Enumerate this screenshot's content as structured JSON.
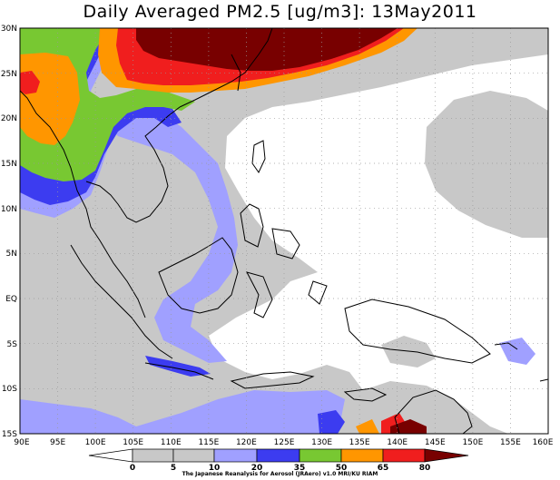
{
  "title": "Daily Averaged PM2.5 [ug/m3]: 13May2011",
  "lat_labels": [
    "30N",
    "25N",
    "20N",
    "15N",
    "10N",
    "5N",
    "EQ",
    "5S",
    "10S",
    "15S"
  ],
  "lon_labels": [
    "90E",
    "95E",
    "100E",
    "105E",
    "110E",
    "115E",
    "120E",
    "125E",
    "130E",
    "135E",
    "140E",
    "145E",
    "150E",
    "155E",
    "160E"
  ],
  "colorbar": {
    "ticks": [
      "0",
      "5",
      "10",
      "20",
      "35",
      "50",
      "65",
      "80"
    ],
    "colors": [
      "#ffffff",
      "#c8c8c8",
      "#a0a0ff",
      "#3c3cf0",
      "#78c832",
      "#ff9600",
      "#f01e1e",
      "#780000"
    ]
  },
  "credit": "The Japanese Reanalysis for Aerosol (JRAero) v1.0  MRI/KU RIAM"
}
